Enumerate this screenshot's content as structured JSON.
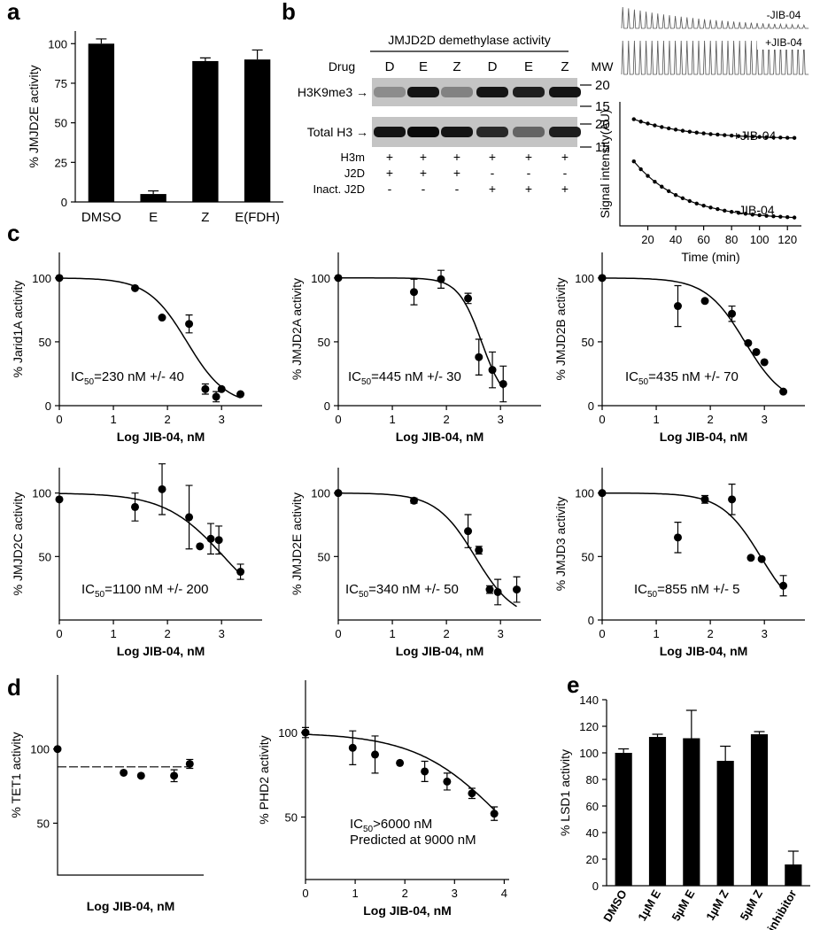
{
  "chart_data": [
    {
      "type": "bar",
      "panel": "a",
      "ylabel": "% JMJD2E activity",
      "categories": [
        "DMSO",
        "E",
        "Z",
        "E(FDH)"
      ],
      "values": [
        100,
        5,
        89,
        90
      ],
      "errors": [
        3,
        2,
        2,
        6
      ],
      "color": "#000000",
      "ylim": [
        0,
        108
      ],
      "yticks": [
        0,
        25,
        50,
        75,
        100
      ]
    },
    {
      "type": "scatter_line",
      "xlabel": "Time (min)",
      "ylabel": "Signal intensity(AU)",
      "x": [
        10,
        15,
        20,
        25,
        30,
        35,
        40,
        45,
        50,
        55,
        60,
        65,
        70,
        75,
        80,
        85,
        90,
        95,
        100,
        105,
        110,
        115,
        120,
        125
      ],
      "series": [
        {
          "name": "+JIB-04",
          "color": "#000000",
          "values": [
            86,
            84.1,
            82.5,
            81,
            79.7,
            78.6,
            77.6,
            76.7,
            75.9,
            75.2,
            74.6,
            74,
            73.6,
            73.2,
            72.8,
            72.4,
            72.2,
            71.9,
            71.7,
            71.5,
            71.3,
            71.2,
            71,
            70.9
          ]
        },
        {
          "name": "-JIB-04",
          "color": "#000000",
          "values": [
            52,
            45.7,
            40.3,
            35.6,
            31.6,
            28,
            24.9,
            22.3,
            20,
            18,
            16.3,
            14.8,
            13.5,
            12.3,
            11.3,
            10.5,
            9.8,
            9.1,
            8.6,
            8.1,
            7.7,
            7.4,
            7,
            6.7
          ]
        }
      ],
      "xlim": [
        0,
        130
      ],
      "ylim": [
        0,
        100
      ],
      "xticks": [
        20,
        40,
        60,
        80,
        100,
        120
      ]
    },
    {
      "type": "dose_response",
      "panel": "c",
      "ylabel": "% Jarid1A activity",
      "xlabel": "Log JIB-04, nM",
      "x": [
        0,
        1.4,
        1.9,
        2.4,
        2.7,
        2.9,
        3.0,
        3.35
      ],
      "values": [
        100,
        92,
        69,
        64,
        13,
        7,
        13,
        9
      ],
      "errors": [
        0,
        0,
        0,
        7,
        4,
        4,
        0,
        0
      ],
      "fit": {
        "top": 100,
        "log_ic50": 2.36,
        "hill": 1.2
      },
      "annotation": {
        "text": "IC",
        "sub": "50",
        "rest": "=230 nM +/- 40"
      },
      "xlim": [
        0,
        3.75
      ],
      "ylim": [
        0,
        120
      ],
      "xticks": [
        0,
        1,
        2,
        3
      ],
      "yticks": [
        0,
        50,
        100
      ]
    },
    {
      "type": "dose_response",
      "ylabel": "% JMJD2A activity",
      "xlabel": "Log JIB-04, nM",
      "x": [
        0,
        1.4,
        1.9,
        2.4,
        2.6,
        2.85,
        3.05
      ],
      "values": [
        100,
        89,
        99,
        84,
        38,
        28,
        17
      ],
      "errors": [
        0,
        10,
        7,
        4,
        14,
        14,
        14
      ],
      "fit": {
        "top": 100,
        "log_ic50": 2.65,
        "hill": 2
      },
      "annotation": {
        "text": "IC",
        "sub": "50",
        "rest": "=445 nM +/- 30"
      },
      "xlim": [
        0,
        3.75
      ],
      "ylim": [
        0,
        120
      ],
      "xticks": [
        0,
        1,
        2,
        3
      ],
      "yticks": [
        0,
        50,
        100
      ]
    },
    {
      "type": "dose_response",
      "ylabel": "% JMJD2B activity",
      "xlabel": "Log JIB-04, nM",
      "x": [
        0,
        1.4,
        1.9,
        2.4,
        2.7,
        2.85,
        3.0,
        3.35
      ],
      "values": [
        100,
        78,
        82,
        72,
        49,
        42,
        34,
        11
      ],
      "errors": [
        0,
        16,
        0,
        6,
        0,
        0,
        0,
        0
      ],
      "fit": {
        "top": 100,
        "log_ic50": 2.64,
        "hill": 1.2
      },
      "annotation": {
        "text": "IC",
        "sub": "50",
        "rest": "=435 nM +/- 70"
      },
      "xlim": [
        0,
        3.75
      ],
      "ylim": [
        0,
        120
      ],
      "xticks": [
        0,
        1,
        2,
        3
      ],
      "yticks": [
        0,
        50,
        100
      ]
    },
    {
      "type": "dose_response",
      "ylabel": "% JMJD2C activity",
      "xlabel": "Log JIB-04, nM",
      "x": [
        0,
        1.4,
        1.9,
        2.4,
        2.6,
        2.8,
        2.95,
        3.35
      ],
      "values": [
        95,
        89,
        103,
        81,
        58,
        64,
        63,
        38
      ],
      "errors": [
        0,
        11,
        20,
        25,
        0,
        12,
        11,
        6
      ],
      "fit": {
        "top": 100,
        "log_ic50": 3.04,
        "hill": 0.8
      },
      "annotation": {
        "text": "IC",
        "sub": "50",
        "rest": "=1100 nM +/- 200"
      },
      "xlim": [
        0,
        3.75
      ],
      "ylim": [
        0,
        120
      ],
      "xticks": [
        0,
        1,
        2,
        3
      ],
      "yticks": [
        50,
        100
      ]
    },
    {
      "type": "dose_response",
      "ylabel": "% JMJD2E activity",
      "xlabel": "Log JIB-04, nM",
      "x": [
        0,
        1.4,
        2.4,
        2.6,
        2.8,
        2.95,
        3.3
      ],
      "values": [
        100,
        94,
        70,
        55,
        24,
        22,
        24
      ],
      "errors": [
        0,
        2,
        13,
        3,
        3,
        10,
        10
      ],
      "fit": {
        "top": 100,
        "log_ic50": 2.53,
        "hill": 1.2
      },
      "annotation": {
        "text": "IC",
        "sub": "50",
        "rest": "=340 nM +/- 50"
      },
      "xlim": [
        0,
        3.75
      ],
      "ylim": [
        0,
        120
      ],
      "xticks": [
        0,
        1,
        2,
        3
      ],
      "yticks": [
        50,
        100
      ]
    },
    {
      "type": "dose_response",
      "ylabel": "% JMJD3 activity",
      "xlabel": "Log JIB-04, nM",
      "x": [
        0,
        1.4,
        1.9,
        2.4,
        2.75,
        2.95,
        3.35
      ],
      "values": [
        100,
        65,
        95,
        95,
        49,
        48,
        27
      ],
      "errors": [
        0,
        12,
        3,
        12,
        0,
        0,
        8
      ],
      "fit": {
        "top": 100,
        "log_ic50": 2.93,
        "hill": 1.2
      },
      "annotation": {
        "text": "IC",
        "sub": "50",
        "rest": "=855 nM +/- 5"
      },
      "xlim": [
        0,
        3.75
      ],
      "ylim": [
        0,
        120
      ],
      "xticks": [
        0,
        1,
        2,
        3
      ],
      "yticks": [
        0,
        50,
        100
      ]
    },
    {
      "type": "dose_response",
      "panel": "d",
      "ylabel": "% TET1 activity",
      "xlabel": "Log JIB-04, nM",
      "x": [
        0,
        1.9,
        2.4,
        3.35,
        3.8
      ],
      "values": [
        100,
        84,
        82,
        82,
        90
      ],
      "errors": [
        0,
        0,
        0,
        4,
        3
      ],
      "fit": {
        "level": 88
      },
      "xlim": [
        0,
        4.2
      ],
      "ylim": [
        15,
        150
      ],
      "yticks": [
        50,
        100
      ]
    },
    {
      "type": "dose_response",
      "ylabel": "% PHD2 activity",
      "xlabel": "Log JIB-04, nM",
      "x": [
        0,
        0.95,
        1.4,
        1.9,
        2.4,
        2.85,
        3.35,
        3.8
      ],
      "values": [
        100,
        91,
        87,
        82,
        77,
        71,
        64,
        52
      ],
      "errors": [
        3,
        10,
        11,
        0,
        6,
        5,
        3,
        4
      ],
      "fit": {
        "top": 100,
        "log_ic50": 3.95,
        "hill": 0.5
      },
      "annotation": {
        "text": "IC",
        "sub": "50",
        "rest": ">6000 nM"
      },
      "annotation2": "Predicted at 9000 nM",
      "xlim": [
        0,
        4.1
      ],
      "ylim": [
        13,
        131
      ],
      "xticks": [
        0,
        1,
        2,
        3,
        4
      ],
      "yticks": [
        50,
        100
      ]
    },
    {
      "type": "bar",
      "panel": "e",
      "ylabel": "% LSD1 activity",
      "categories": [
        "DMSO",
        "1µM E",
        "5µM E",
        "1µM Z",
        "5µM Z",
        "inhibitor"
      ],
      "values": [
        100,
        112,
        111,
        94,
        114,
        16
      ],
      "errors": [
        3,
        2,
        21,
        11,
        2,
        10
      ],
      "color": "#000000",
      "ylim": [
        0,
        140
      ],
      "yticks": [
        0,
        20,
        40,
        60,
        80,
        100,
        120,
        140
      ]
    }
  ],
  "blot": {
    "panel": "b",
    "title": "JMJD2D demethylase activity",
    "drug_label": "Drug",
    "lanes": [
      "D",
      "E",
      "Z",
      "D",
      "E",
      "Z"
    ],
    "mw_label": "MW",
    "rows": [
      {
        "label": "H3K9me3 →",
        "markers": [
          "20",
          "15"
        ],
        "intensity": [
          0.3,
          0.9,
          0.35,
          0.9,
          0.85,
          0.9
        ]
      },
      {
        "label": "Total H3 →",
        "markers": [
          "20",
          "15"
        ],
        "intensity": [
          0.9,
          0.95,
          0.9,
          0.8,
          0.5,
          0.85
        ]
      }
    ],
    "conditions": [
      {
        "label": "H3m",
        "signs": [
          "+",
          "+",
          "+",
          "+",
          "+",
          "+"
        ]
      },
      {
        "label": "J2D",
        "signs": [
          "+",
          "+",
          "+",
          "-",
          "-",
          "-"
        ]
      },
      {
        "label": "Inact. J2D",
        "signs": [
          "-",
          "-",
          "-",
          "+",
          "+",
          "+"
        ]
      }
    ]
  }
}
